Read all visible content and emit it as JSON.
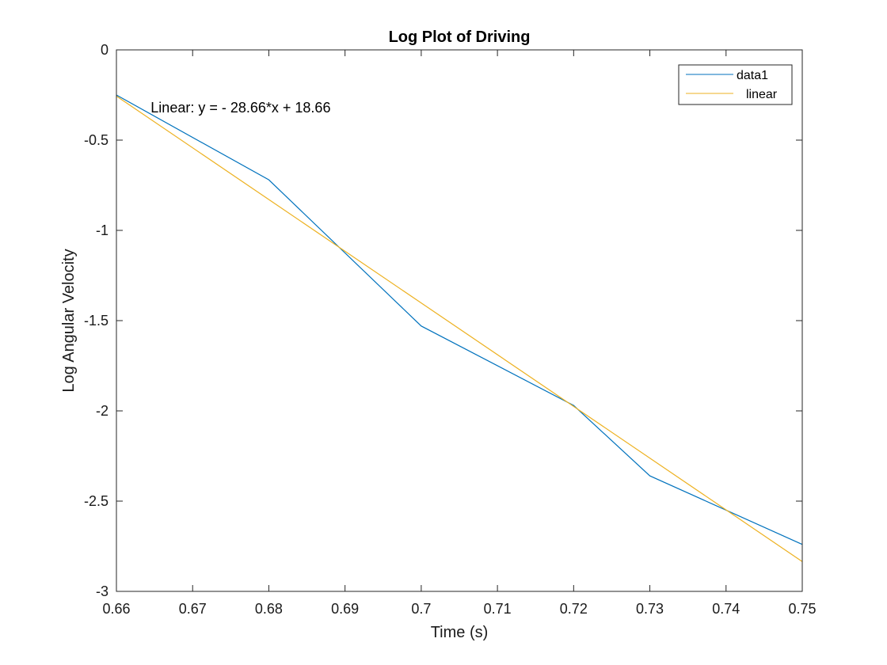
{
  "chart_data": {
    "type": "line",
    "title": "Log Plot of Driving",
    "xlabel": "Time (s)",
    "ylabel": "Log Angular Velocity",
    "xlim": [
      0.66,
      0.75
    ],
    "ylim": [
      -3,
      0
    ],
    "xticks": [
      0.66,
      0.67,
      0.68,
      0.69,
      0.7,
      0.71,
      0.72,
      0.73,
      0.74,
      0.75
    ],
    "xtick_labels": [
      "0.66",
      "0.67",
      "0.68",
      "0.69",
      "0.7",
      "0.71",
      "0.72",
      "0.73",
      "0.74",
      "0.75"
    ],
    "yticks": [
      0,
      -0.5,
      -1,
      -1.5,
      -2,
      -2.5,
      -3
    ],
    "ytick_labels": [
      "0",
      "-0.5",
      "-1",
      "-1.5",
      "-2",
      "-2.5",
      "-3"
    ],
    "grid": false,
    "legend_position": "top-right",
    "series": [
      {
        "name": "data1",
        "color": "#0072bd",
        "x": [
          0.66,
          0.68,
          0.7,
          0.72,
          0.73,
          0.75
        ],
        "y": [
          -0.25,
          -0.72,
          -1.53,
          -1.97,
          -2.36,
          -2.74
        ]
      },
      {
        "name": "linear",
        "color": "#edb120",
        "x": [
          0.66,
          0.75
        ],
        "y": [
          -0.256,
          -2.835
        ]
      }
    ],
    "annotation": {
      "text": "Linear:  y = - 28.66*x + 18.66",
      "x": 0.6645,
      "y": -0.32
    }
  }
}
